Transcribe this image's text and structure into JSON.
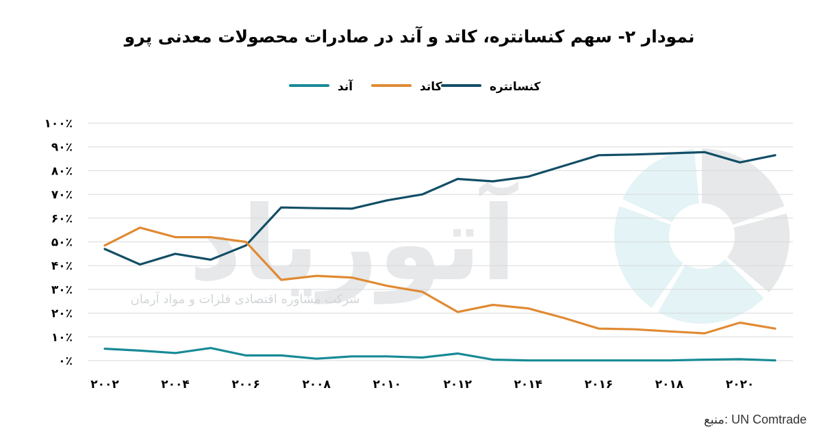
{
  "colors": {
    "concentrate": "#124e66",
    "cathode": "#e08a32",
    "anode": "#178a96",
    "grid": "#d9d9d9",
    "watermark_gray": "#e6e8ea",
    "watermark_cyan": "#e3f3f6"
  },
  "watermark": {
    "word": "آتوریاد",
    "tagline": "شرکت مشاوره اقتصادی فلزات و مواد آرمان"
  },
  "source_label": "منبع: UN Comtrade",
  "chart_data": {
    "type": "line",
    "title": "نمودار ۲- سهم کنسانتره، کاتد و آند در صادرات محصولات معدنی پرو",
    "legend_position": "top-center",
    "grid": true,
    "x": [
      2002,
      2003,
      2004,
      2005,
      2006,
      2007,
      2008,
      2009,
      2010,
      2011,
      2012,
      2013,
      2014,
      2015,
      2016,
      2017,
      2018,
      2019,
      2020,
      2021
    ],
    "x_tick_labels": [
      "۲۰۰۲",
      "۲۰۰۴",
      "۲۰۰۶",
      "۲۰۰۸",
      "۲۰۱۰",
      "۲۰۱۲",
      "۲۰۱۴",
      "۲۰۱۶",
      "۲۰۱۸",
      "۲۰۲۰"
    ],
    "x_tick_values": [
      2002,
      2004,
      2006,
      2008,
      2010,
      2012,
      2014,
      2016,
      2018,
      2020
    ],
    "y_tick_labels": [
      "۰٪",
      "۱۰٪",
      "۲۰٪",
      "۳۰٪",
      "۴۰٪",
      "۵۰٪",
      "۶۰٪",
      "۷۰٪",
      "۸۰٪",
      "۹۰٪",
      "۱۰۰٪"
    ],
    "y_tick_values": [
      0,
      10,
      20,
      30,
      40,
      50,
      60,
      70,
      80,
      90,
      100
    ],
    "ylim": [
      0,
      100
    ],
    "series": [
      {
        "name": "کنسانتره",
        "color_key": "concentrate",
        "values": [
          47,
          40.5,
          45,
          42.5,
          48.5,
          64.5,
          64.2,
          64,
          67.5,
          70,
          76.5,
          75.5,
          77.5,
          82,
          86.5,
          86.8,
          87.3,
          87.8,
          83.5,
          86.5
        ]
      },
      {
        "name": "کاتد",
        "color_key": "cathode",
        "values": [
          48.5,
          56,
          52,
          52,
          50,
          34,
          35.7,
          35,
          31.5,
          29,
          20.5,
          23.5,
          22,
          18,
          13.5,
          13.2,
          12.3,
          11.5,
          16,
          13.5
        ]
      },
      {
        "name": "آند",
        "color_key": "anode",
        "values": [
          5,
          4.2,
          3.2,
          5.3,
          2.2,
          2.2,
          0.8,
          1.8,
          1.8,
          1.3,
          3,
          0.4,
          0.1,
          0.1,
          0.1,
          0.1,
          0.1,
          0.4,
          0.6,
          0.1
        ]
      }
    ]
  }
}
